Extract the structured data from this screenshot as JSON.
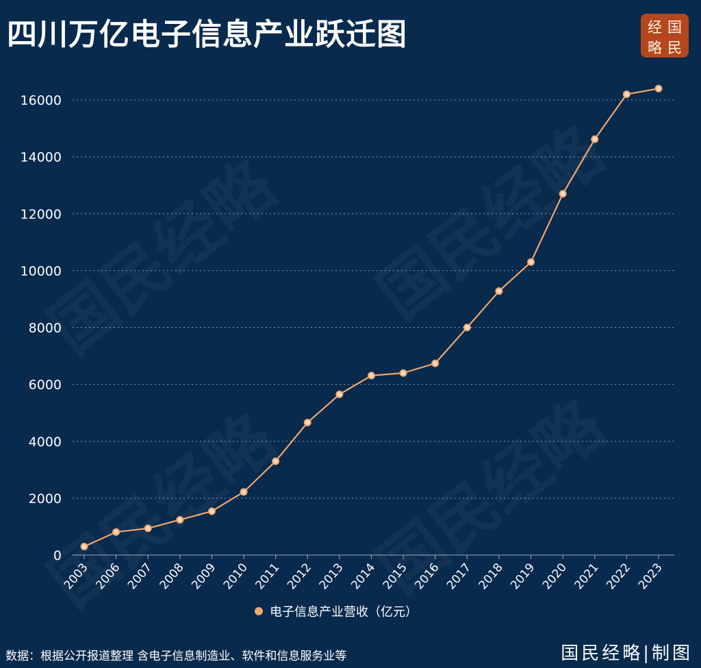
{
  "header": {
    "title": "四川万亿电子信息产业跃迁图"
  },
  "logo": {
    "chars": [
      "经",
      "国",
      "略",
      "民"
    ]
  },
  "watermark": "国民经略",
  "legend": {
    "label": "电子信息产业营收（亿元）"
  },
  "footer": {
    "source": "数据：根据公开报道整理 含电子信息制造业、软件和信息服务业等",
    "brand": "国民经略|制图"
  },
  "colors": {
    "background": "#082a4d",
    "line": "#f2a66b",
    "marker_fill": "#f7d9bf",
    "logo_bg": "#b5471c"
  },
  "chart_data": {
    "type": "line",
    "title": "四川万亿电子信息产业跃迁图",
    "xlabel": "",
    "ylabel": "",
    "categories": [
      "2003",
      "2006",
      "2007",
      "2008",
      "2009",
      "2010",
      "2011",
      "2012",
      "2013",
      "2014",
      "2015",
      "2016",
      "2017",
      "2018",
      "2019",
      "2020",
      "2021",
      "2022",
      "2023"
    ],
    "series": [
      {
        "name": "电子信息产业营收（亿元）",
        "values": [
          300,
          810,
          940,
          1240,
          1540,
          2220,
          3300,
          4660,
          5650,
          6310,
          6400,
          6740,
          8000,
          9280,
          10300,
          12700,
          14620,
          16200,
          16400
        ]
      }
    ],
    "ylim": [
      0,
      16000
    ],
    "yticks": [
      0,
      2000,
      4000,
      6000,
      8000,
      10000,
      12000,
      14000,
      16000
    ],
    "grid": true,
    "legend_position": "bottom"
  }
}
